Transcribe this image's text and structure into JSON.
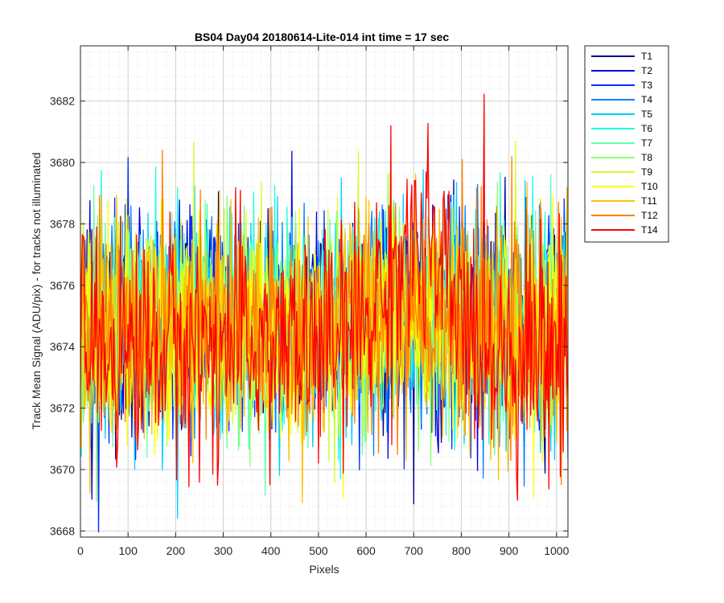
{
  "chart_data": {
    "type": "line",
    "title": "BS04 Day04 20180614-Lite-014 int time = 17 sec",
    "xlabel": "Pixels",
    "ylabel": "Track Mean Signal (ADU/pix) - for tracks not illuminated",
    "xlim": [
      0,
      1024
    ],
    "ylim": [
      3667.8,
      3683.8
    ],
    "xticks": [
      0,
      100,
      200,
      300,
      400,
      500,
      600,
      700,
      800,
      900,
      1000
    ],
    "yticks": [
      3668,
      3670,
      3672,
      3674,
      3676,
      3678,
      3680,
      3682
    ],
    "grid": true,
    "minor_grid": true,
    "legend_position": "outside-top-right",
    "series": [
      {
        "name": "T1",
        "color": "#00008f",
        "baseline": 3674.8,
        "spread": 2.0
      },
      {
        "name": "T2",
        "color": "#0000df",
        "baseline": 3674.8,
        "spread": 2.0
      },
      {
        "name": "T3",
        "color": "#0030ff",
        "baseline": 3674.8,
        "spread": 2.0
      },
      {
        "name": "T4",
        "color": "#0080ff",
        "baseline": 3674.8,
        "spread": 2.0
      },
      {
        "name": "T5",
        "color": "#00cfff",
        "baseline": 3674.8,
        "spread": 2.0
      },
      {
        "name": "T6",
        "color": "#20ffdf",
        "baseline": 3674.8,
        "spread": 2.0
      },
      {
        "name": "T7",
        "color": "#60ffaf",
        "baseline": 3674.8,
        "spread": 2.0
      },
      {
        "name": "T8",
        "color": "#8fff70",
        "baseline": 3674.7,
        "spread": 2.0
      },
      {
        "name": "T9",
        "color": "#cfff30",
        "baseline": 3674.6,
        "spread": 2.0
      },
      {
        "name": "T10",
        "color": "#ffff00",
        "baseline": 3674.5,
        "spread": 2.1
      },
      {
        "name": "T11",
        "color": "#ffbf00",
        "baseline": 3674.5,
        "spread": 2.1
      },
      {
        "name": "T12",
        "color": "#ff8000",
        "baseline": 3674.5,
        "spread": 2.1
      },
      {
        "name": "T14",
        "color": "#ff0000",
        "baseline": 3674.0,
        "spread": 2.2,
        "bump_center": 700,
        "bump_height": 3.2,
        "bump_width": 90
      }
    ]
  }
}
